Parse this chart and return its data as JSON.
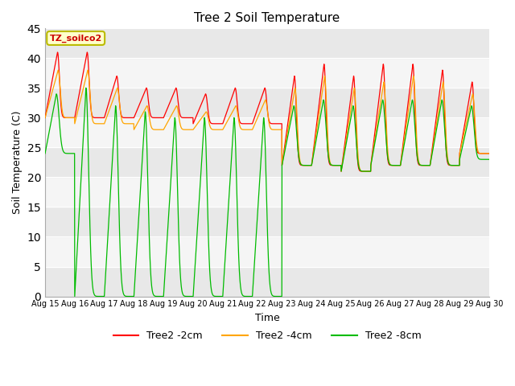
{
  "title": "Tree 2 Soil Temperature",
  "ylabel": "Soil Temperature (C)",
  "xlabel": "Time",
  "annotation": "TZ_soilco2",
  "legend": [
    "Tree2 -2cm",
    "Tree2 -4cm",
    "Tree2 -8cm"
  ],
  "line_colors": [
    "#FF0000",
    "#FFA500",
    "#00BB00"
  ],
  "ylim": [
    0,
    45
  ],
  "tick_labels": [
    "Aug 15",
    "Aug 16",
    "Aug 17",
    "Aug 18",
    "Aug 19",
    "Aug 20",
    "Aug 21",
    "Aug 22",
    "Aug 23",
    "Aug 24",
    "Aug 25",
    "Aug 26",
    "Aug 27",
    "Aug 28",
    "Aug 29",
    "Aug 30"
  ],
  "red_peaks": [
    41,
    41,
    37,
    35,
    35,
    34,
    35,
    35,
    37,
    39,
    37,
    39,
    39,
    38,
    36
  ],
  "orange_peaks": [
    38,
    38,
    35,
    32,
    32,
    31,
    32,
    33,
    35,
    37,
    35,
    36,
    37,
    36,
    34
  ],
  "green_peaks": [
    34,
    35,
    32,
    31,
    30,
    30,
    30,
    30,
    32,
    33,
    32,
    33,
    33,
    33,
    32
  ],
  "red_mins": [
    30,
    30,
    30,
    30,
    30,
    29,
    29,
    29,
    22,
    22,
    21,
    22,
    22,
    22,
    24
  ],
  "orange_mins": [
    30,
    29,
    29,
    28,
    28,
    28,
    28,
    28,
    22,
    22,
    21,
    22,
    22,
    22,
    24
  ],
  "green_mins_p1": [
    24,
    0,
    0,
    0,
    0,
    0,
    0,
    0
  ],
  "green_mins_p2": [
    22,
    22,
    21,
    22,
    22,
    22,
    23,
    25
  ],
  "n_days": 15
}
